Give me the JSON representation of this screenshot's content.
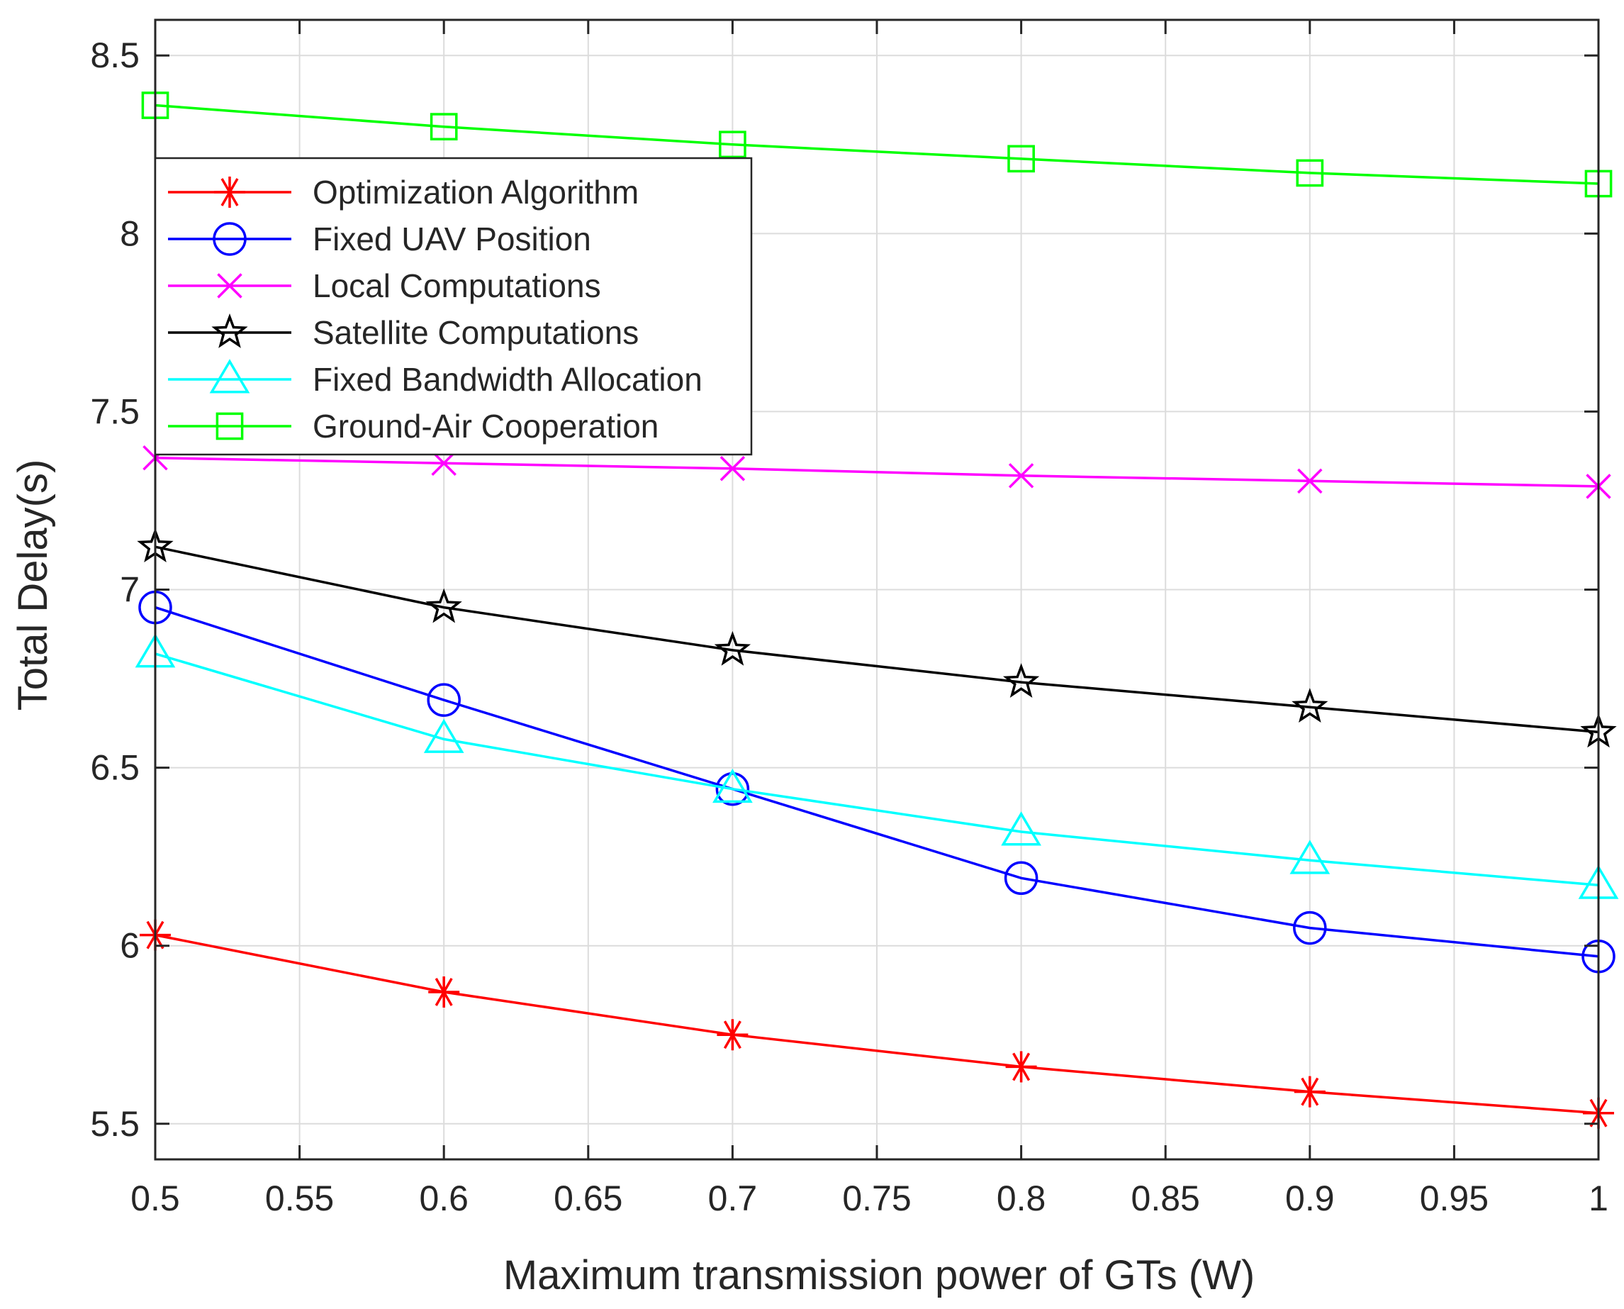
{
  "chart_data": {
    "type": "line",
    "title": "",
    "xlabel": "Maximum transmission power of GTs (W)",
    "ylabel": "Total Delay(s)",
    "xlim": [
      0.5,
      1.0
    ],
    "ylim": [
      5.4,
      8.6
    ],
    "grid": true,
    "legend_position": "top-left",
    "xticks": [
      0.5,
      0.55,
      0.6,
      0.65,
      0.7,
      0.75,
      0.8,
      0.85,
      0.9,
      0.95,
      1.0
    ],
    "xtick_labels": [
      "0.5",
      "0.55",
      "0.6",
      "0.65",
      "0.7",
      "0.75",
      "0.8",
      "0.85",
      "0.9",
      "0.95",
      "1"
    ],
    "yticks": [
      5.5,
      6.0,
      6.5,
      7.0,
      7.5,
      8.0,
      8.5
    ],
    "ytick_labels": [
      "5.5",
      "6",
      "6.5",
      "7",
      "7.5",
      "8",
      "8.5"
    ],
    "x": [
      0.5,
      0.6,
      0.7,
      0.8,
      0.9,
      1.0
    ],
    "series": [
      {
        "name": "Optimization Algorithm",
        "color": "#ff0000",
        "marker": "asterisk",
        "values": [
          6.03,
          5.87,
          5.75,
          5.66,
          5.59,
          5.53
        ]
      },
      {
        "name": "Fixed UAV Position",
        "color": "#0000ff",
        "marker": "circle",
        "values": [
          6.95,
          6.69,
          6.44,
          6.19,
          6.05,
          5.97
        ]
      },
      {
        "name": "Local Computations",
        "color": "#ff00ff",
        "marker": "x",
        "values": [
          7.37,
          7.355,
          7.34,
          7.32,
          7.305,
          7.29
        ]
      },
      {
        "name": "Satellite Computations",
        "color": "#000000",
        "marker": "star",
        "values": [
          7.12,
          6.95,
          6.83,
          6.74,
          6.67,
          6.6
        ]
      },
      {
        "name": "Fixed Bandwidth Allocation",
        "color": "#00ffff",
        "marker": "triangle",
        "values": [
          6.82,
          6.58,
          6.44,
          6.32,
          6.24,
          6.17
        ]
      },
      {
        "name": "Ground-Air Cooperation",
        "color": "#00ff00",
        "marker": "square",
        "values": [
          8.36,
          8.3,
          8.25,
          8.21,
          8.17,
          8.14
        ]
      }
    ]
  }
}
